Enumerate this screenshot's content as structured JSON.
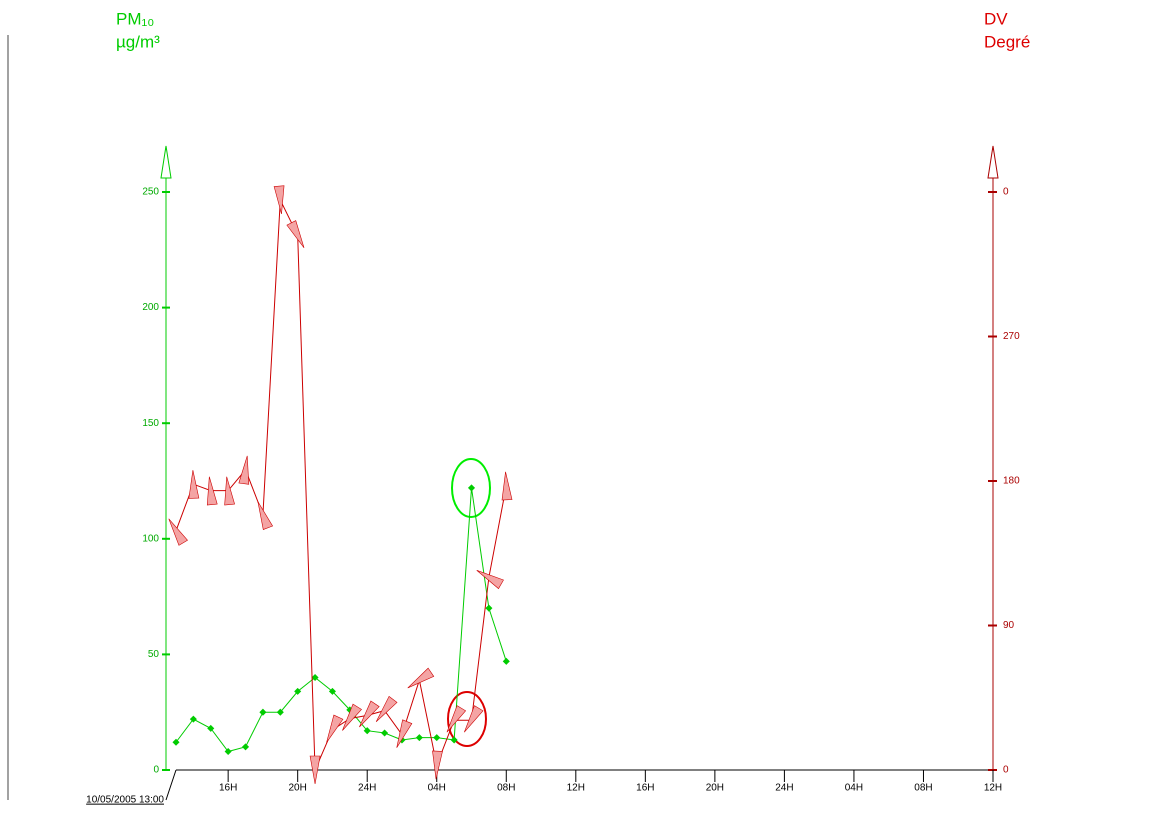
{
  "chart_data": {
    "type": "line",
    "y_label": [
      "PM₁₀",
      "µg/m³"
    ],
    "y2_label": [
      "DV",
      "Degré"
    ],
    "x_start_label": "10/05/2005 13:00",
    "x": [
      0,
      1,
      2,
      3,
      4,
      5,
      6,
      7,
      8,
      9,
      10,
      11,
      12,
      13,
      14,
      15,
      16,
      17,
      18,
      19
    ],
    "xlim": [
      0,
      47
    ],
    "xticks": [
      {
        "value": 3,
        "label": "16H"
      },
      {
        "value": 7,
        "label": "20H"
      },
      {
        "value": 11,
        "label": "24H"
      },
      {
        "value": 15,
        "label": "04H"
      },
      {
        "value": 19,
        "label": "08H"
      },
      {
        "value": 23,
        "label": "12H"
      },
      {
        "value": 27,
        "label": "16H"
      },
      {
        "value": 31,
        "label": "20H"
      },
      {
        "value": 35,
        "label": "24H"
      },
      {
        "value": 39,
        "label": "04H"
      },
      {
        "value": 43,
        "label": "08H"
      },
      {
        "value": 47,
        "label": "12H"
      }
    ],
    "ylim": [
      0,
      250
    ],
    "yticks": [
      0,
      50,
      100,
      150,
      200,
      250
    ],
    "y2lim": [
      0,
      360
    ],
    "y2ticks": [
      {
        "value": 360,
        "label": "0"
      },
      270,
      180,
      90,
      0
    ],
    "series": [
      {
        "color": "#00cc00",
        "values": [
          12,
          22,
          18,
          8,
          10,
          25,
          25,
          34,
          40,
          34,
          26,
          17,
          16,
          13,
          14,
          14,
          13,
          122,
          70,
          47
        ]
      },
      {
        "color": "#cc0000",
        "axis": "y2",
        "marker": "arrow",
        "marker_color": "#f4a4a4",
        "values": [
          149,
          178,
          174,
          174,
          187,
          159,
          355,
          333,
          0,
          25,
          32,
          34,
          37,
          22,
          56,
          3,
          31,
          31,
          120,
          177
        ]
      }
    ]
  }
}
